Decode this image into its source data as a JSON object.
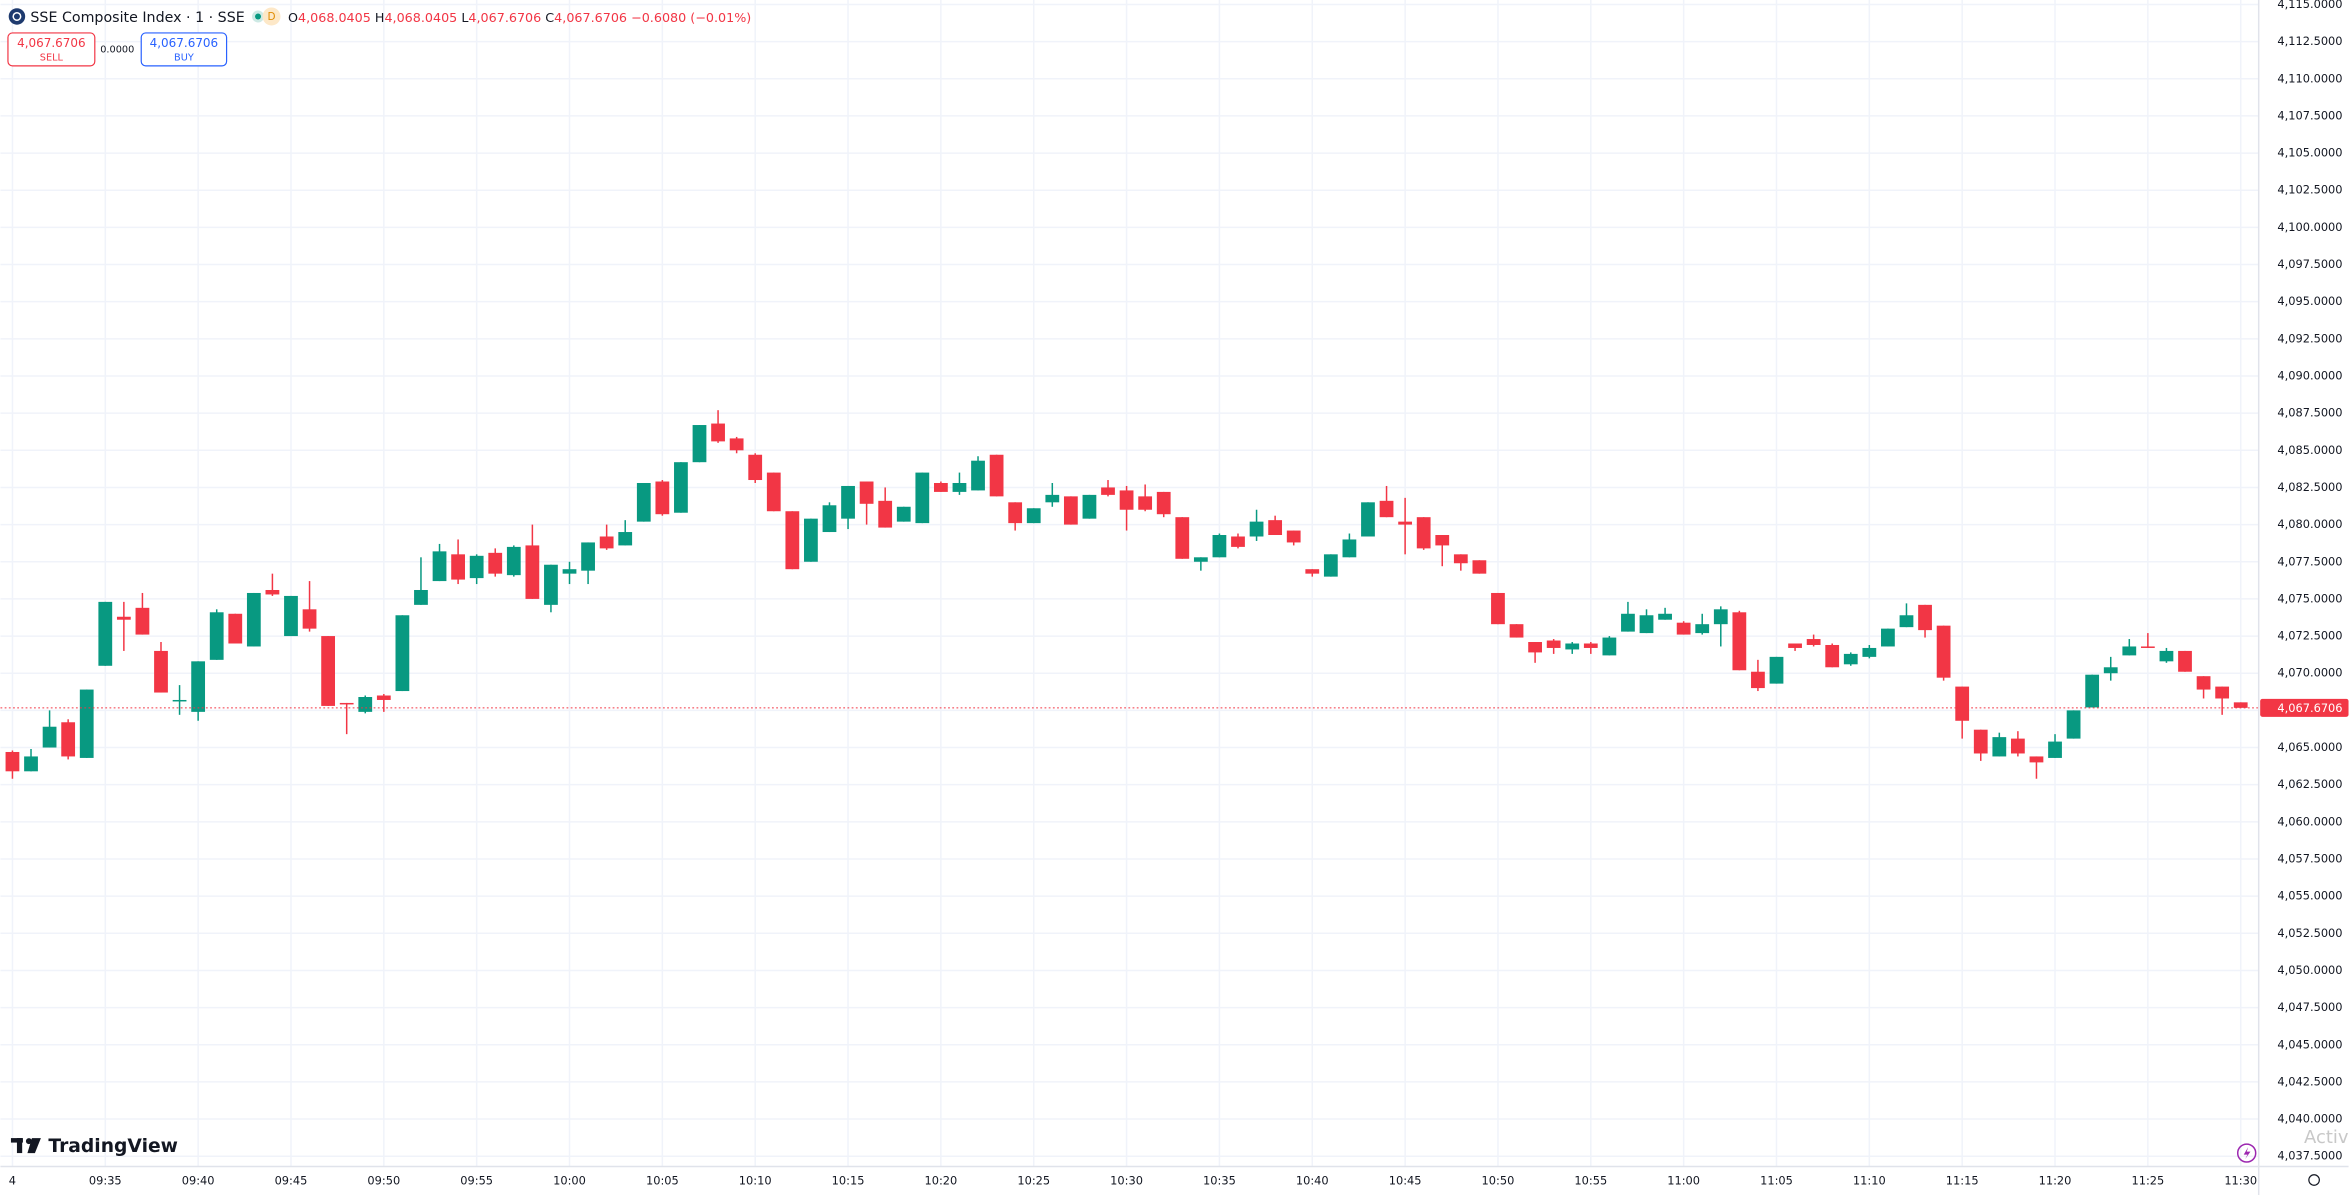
{
  "header": {
    "symbol": "SSE Composite Index · 1 · SSE",
    "badge": "D",
    "ohlc": [
      {
        "key": "O",
        "value": "4,068.0405"
      },
      {
        "key": "H",
        "value": "4,068.0405"
      },
      {
        "key": "L",
        "value": "4,067.6706"
      },
      {
        "key": "C",
        "value": "4,067.6706"
      }
    ],
    "change": "−0.6080 (−0.01%)",
    "sell": {
      "price": "4,067.6706",
      "label": "SELL"
    },
    "spread": "0.0000",
    "buy": {
      "price": "4,067.6706",
      "label": "BUY"
    }
  },
  "logo": "TradingView",
  "watermark": "Activ",
  "chart_data": {
    "type": "candlestick",
    "up_color": "#089981",
    "down_color": "#f23645",
    "grid": true,
    "categories": [
      "4",
      null,
      null,
      null,
      null,
      "09:35",
      null,
      null,
      null,
      null,
      "09:40",
      null,
      null,
      null,
      null,
      "09:45",
      null,
      null,
      null,
      null,
      "09:50",
      null,
      null,
      null,
      null,
      "09:55",
      null,
      null,
      null,
      null,
      "10:00",
      null,
      null,
      null,
      null,
      "10:05",
      null,
      null,
      null,
      null,
      "10:10",
      null,
      null,
      null,
      null,
      "10:15",
      null,
      null,
      null,
      null,
      "10:20",
      null,
      null,
      null,
      null,
      "10:25",
      null,
      null,
      null,
      null,
      "10:30",
      null,
      null,
      null,
      null,
      "10:35",
      null,
      null,
      null,
      null,
      "10:40",
      null,
      null,
      null,
      null,
      "10:45",
      null,
      null,
      null,
      null,
      "10:50",
      null,
      null,
      null,
      null,
      "10:55",
      null,
      null,
      null,
      null,
      "11:00",
      null,
      null,
      null,
      null,
      "11:05",
      null,
      null,
      null,
      null,
      "11:10",
      null,
      null,
      null,
      null,
      "11:15",
      null,
      null,
      null,
      null,
      "11:20",
      null,
      null,
      null,
      null,
      "11:25",
      null,
      null,
      null,
      null,
      "11:30"
    ],
    "open": [
      4064.7,
      4063.4,
      4065.0,
      4066.7,
      4064.3,
      4070.5,
      4073.8,
      4074.4,
      4071.5,
      4068.2,
      4067.4,
      4070.9,
      4074.0,
      4071.8,
      4075.6,
      4072.5,
      4074.3,
      4072.5,
      4068.0,
      4067.4,
      4068.5,
      4068.8,
      4074.6,
      4076.2,
      4078.0,
      4076.4,
      4078.1,
      4076.6,
      4078.6,
      4074.6,
      4076.7,
      4076.9,
      4079.2,
      4078.6,
      4080.2,
      4082.9,
      4080.8,
      4084.2,
      4086.8,
      4085.8,
      4084.7,
      4083.5,
      4080.9,
      4077.5,
      4079.5,
      4080.4,
      4082.9,
      4081.6,
      4080.2,
      4080.1,
      4082.8,
      4082.2,
      4082.3,
      4084.7,
      4081.5,
      4080.1,
      4081.5,
      4081.9,
      4080.4,
      4082.5,
      4082.3,
      4081.9,
      4082.2,
      4080.5,
      4077.5,
      4077.8,
      4079.2,
      4079.2,
      4080.3,
      4079.6,
      4077.0,
      4076.5,
      4077.8,
      4079.2,
      4081.6,
      4080.2,
      4080.5,
      4079.3,
      4078.0,
      4077.6,
      4075.4,
      4073.3,
      4072.1,
      4072.2,
      4071.6,
      4072.0,
      4071.2,
      4072.8,
      4072.7,
      4073.6,
      4073.4,
      4072.7,
      4073.3,
      4074.1,
      4070.1,
      4069.3,
      4072.0,
      4072.3,
      4071.9,
      4070.6,
      4071.1,
      4071.8,
      4073.1,
      4074.6,
      4073.2,
      4069.1,
      4066.2,
      4064.4,
      4065.6,
      4064.4,
      4064.3,
      4065.6,
      4067.7,
      4070.0,
      4071.2,
      4071.8,
      4070.8,
      4071.5,
      4069.8,
      4069.1,
      4068.0405
    ],
    "high": [
      4064.8,
      4064.9,
      4067.5,
      4066.9,
      4068.9,
      4074.8,
      4074.8,
      4075.4,
      4072.1,
      4069.2,
      4070.8,
      4074.3,
      4074.0,
      4075.4,
      4076.7,
      4075.2,
      4076.2,
      4072.5,
      4068.0,
      4068.5,
      4068.6,
      4073.9,
      4077.8,
      4078.7,
      4079.0,
      4078.0,
      4078.4,
      4078.6,
      4080.0,
      4077.3,
      4077.5,
      4078.8,
      4080.0,
      4080.3,
      4082.8,
      4083.0,
      4084.2,
      4086.7,
      4087.7,
      4085.9,
      4084.8,
      4083.5,
      4080.9,
      4080.4,
      4081.5,
      4082.6,
      4082.9,
      4082.5,
      4081.2,
      4083.5,
      4082.9,
      4083.5,
      4084.6,
      4084.7,
      4081.5,
      4081.1,
      4082.8,
      4081.9,
      4082.0,
      4083.0,
      4082.6,
      4082.7,
      4082.2,
      4080.5,
      4077.8,
      4079.4,
      4079.4,
      4081.0,
      4080.6,
      4079.6,
      4077.0,
      4078.0,
      4079.4,
      4081.5,
      4082.6,
      4081.8,
      4080.5,
      4079.3,
      4078.0,
      4077.6,
      4075.4,
      4073.3,
      4072.1,
      4072.3,
      4072.1,
      4072.1,
      4072.5,
      4074.8,
      4074.3,
      4074.4,
      4073.5,
      4074.0,
      4074.5,
      4074.2,
      4070.9,
      4071.1,
      4072.0,
      4072.6,
      4072.0,
      4071.4,
      4071.9,
      4073.0,
      4074.7,
      4074.6,
      4073.2,
      4069.1,
      4066.2,
      4066.0,
      4066.1,
      4064.4,
      4065.9,
      4067.5,
      4069.9,
      4071.1,
      4072.3,
      4072.7,
      4071.7,
      4071.5,
      4069.8,
      4069.1,
      4068.0405
    ],
    "low": [
      4062.9,
      4063.4,
      4065.0,
      4064.2,
      4064.3,
      4070.5,
      4071.5,
      4072.6,
      4068.7,
      4067.2,
      4066.8,
      4070.9,
      4072.0,
      4071.8,
      4075.2,
      4072.5,
      4072.8,
      4067.8,
      4065.9,
      4067.3,
      4067.4,
      4068.8,
      4074.6,
      4076.2,
      4076.0,
      4076.0,
      4076.5,
      4076.5,
      4075.0,
      4074.1,
      4076.0,
      4076.0,
      4078.3,
      4078.6,
      4080.2,
      4080.6,
      4080.8,
      4084.2,
      4085.5,
      4084.8,
      4082.8,
      4080.9,
      4077.0,
      4077.5,
      4079.5,
      4079.7,
      4080.0,
      4079.8,
      4080.2,
      4080.1,
      4082.2,
      4082.0,
      4082.3,
      4081.9,
      4079.6,
      4080.1,
      4081.2,
      4080.0,
      4080.4,
      4081.9,
      4079.6,
      4080.9,
      4080.5,
      4077.7,
      4076.9,
      4077.8,
      4078.4,
      4078.9,
      4079.3,
      4078.6,
      4076.5,
      4076.5,
      4077.8,
      4079.2,
      4080.5,
      4078.0,
      4078.3,
      4077.2,
      4076.9,
      4076.7,
      4073.3,
      4072.4,
      4070.7,
      4071.3,
      4071.3,
      4071.3,
      4071.2,
      4072.8,
      4072.7,
      4073.6,
      4072.6,
      4072.6,
      4071.8,
      4070.2,
      4068.8,
      4069.3,
      4071.5,
      4071.8,
      4070.4,
      4070.5,
      4071.0,
      4071.8,
      4073.1,
      4072.4,
      4069.5,
      4065.6,
      4064.1,
      4064.4,
      4064.4,
      4062.9,
      4064.3,
      4065.6,
      4067.7,
      4069.5,
      4071.2,
      4071.7,
      4070.7,
      4070.1,
      4068.3,
      4067.2,
      4067.6706
    ],
    "close": [
      4063.4,
      4064.4,
      4066.4,
      4064.4,
      4068.9,
      4074.8,
      4073.6,
      4072.6,
      4068.7,
      4068.2,
      4070.8,
      4074.1,
      4072.0,
      4075.4,
      4075.3,
      4075.2,
      4073.0,
      4067.8,
      4067.9,
      4068.4,
      4068.2,
      4073.9,
      4075.6,
      4078.2,
      4076.3,
      4077.9,
      4076.7,
      4078.5,
      4075.0,
      4077.3,
      4077.0,
      4078.8,
      4078.4,
      4079.5,
      4082.8,
      4080.7,
      4084.2,
      4086.7,
      4085.6,
      4085.0,
      4083.0,
      4080.9,
      4077.0,
      4080.4,
      4081.3,
      4082.6,
      4081.4,
      4079.8,
      4081.2,
      4083.5,
      4082.2,
      4082.8,
      4084.3,
      4081.9,
      4080.1,
      4081.1,
      4082.0,
      4080.0,
      4082.0,
      4082.0,
      4081.0,
      4081.0,
      4080.7,
      4077.7,
      4077.8,
      4079.3,
      4078.5,
      4080.2,
      4079.3,
      4078.8,
      4076.7,
      4078.0,
      4079.0,
      4081.5,
      4080.5,
      4080.0,
      4078.4,
      4078.6,
      4077.4,
      4076.7,
      4073.3,
      4072.4,
      4071.4,
      4071.7,
      4072.0,
      4071.7,
      4072.4,
      4074.0,
      4073.9,
      4074.0,
      4072.6,
      4073.3,
      4074.3,
      4070.2,
      4069.0,
      4071.1,
      4071.7,
      4071.9,
      4070.4,
      4071.3,
      4071.7,
      4073.0,
      4073.9,
      4072.9,
      4069.7,
      4066.8,
      4064.6,
      4065.7,
      4064.6,
      4064.0,
      4065.4,
      4067.5,
      4069.9,
      4070.4,
      4071.8,
      4071.7,
      4071.5,
      4070.1,
      4068.9,
      4068.3,
      4067.6706
    ],
    "ylim": [
      4036.2,
      4115.3
    ],
    "yticks": [
      {
        "value": 4037.5,
        "label": "4,037.5000"
      },
      {
        "value": 4040,
        "label": "4,040.0000"
      },
      {
        "value": 4042.5,
        "label": "4,042.5000"
      },
      {
        "value": 4045,
        "label": "4,045.0000"
      },
      {
        "value": 4047.5,
        "label": "4,047.5000"
      },
      {
        "value": 4050,
        "label": "4,050.0000"
      },
      {
        "value": 4052.5,
        "label": "4,052.5000"
      },
      {
        "value": 4055,
        "label": "4,055.0000"
      },
      {
        "value": 4057.5,
        "label": "4,057.5000"
      },
      {
        "value": 4060,
        "label": "4,060.0000"
      },
      {
        "value": 4062.5,
        "label": "4,062.5000"
      },
      {
        "value": 4065,
        "label": "4,065.0000"
      },
      {
        "value": 4067.5,
        "label": "4,067.5000"
      },
      {
        "value": 4070,
        "label": "4,070.0000"
      },
      {
        "value": 4072.5,
        "label": "4,072.5000"
      },
      {
        "value": 4075,
        "label": "4,075.0000"
      },
      {
        "value": 4077.5,
        "label": "4,077.5000"
      },
      {
        "value": 4080,
        "label": "4,080.0000"
      },
      {
        "value": 4082.5,
        "label": "4,082.5000"
      },
      {
        "value": 4085,
        "label": "4,085.0000"
      },
      {
        "value": 4087.5,
        "label": "4,087.5000"
      },
      {
        "value": 4090,
        "label": "4,090.0000"
      },
      {
        "value": 4092.5,
        "label": "4,092.5000"
      },
      {
        "value": 4095,
        "label": "4,095.0000"
      },
      {
        "value": 4097.5,
        "label": "4,097.5000"
      },
      {
        "value": 4100,
        "label": "4,100.0000"
      },
      {
        "value": 4102.5,
        "label": "4,102.5000"
      },
      {
        "value": 4105,
        "label": "4,105.0000"
      },
      {
        "value": 4107.5,
        "label": "4,107.5000"
      },
      {
        "value": 4110,
        "label": "4,110.0000"
      },
      {
        "value": 4112.5,
        "label": "4,112.5000"
      },
      {
        "value": 4115,
        "label": "4,115.0000"
      }
    ],
    "last_price": {
      "value": 4067.6706,
      "label": "4,067.6706"
    }
  }
}
